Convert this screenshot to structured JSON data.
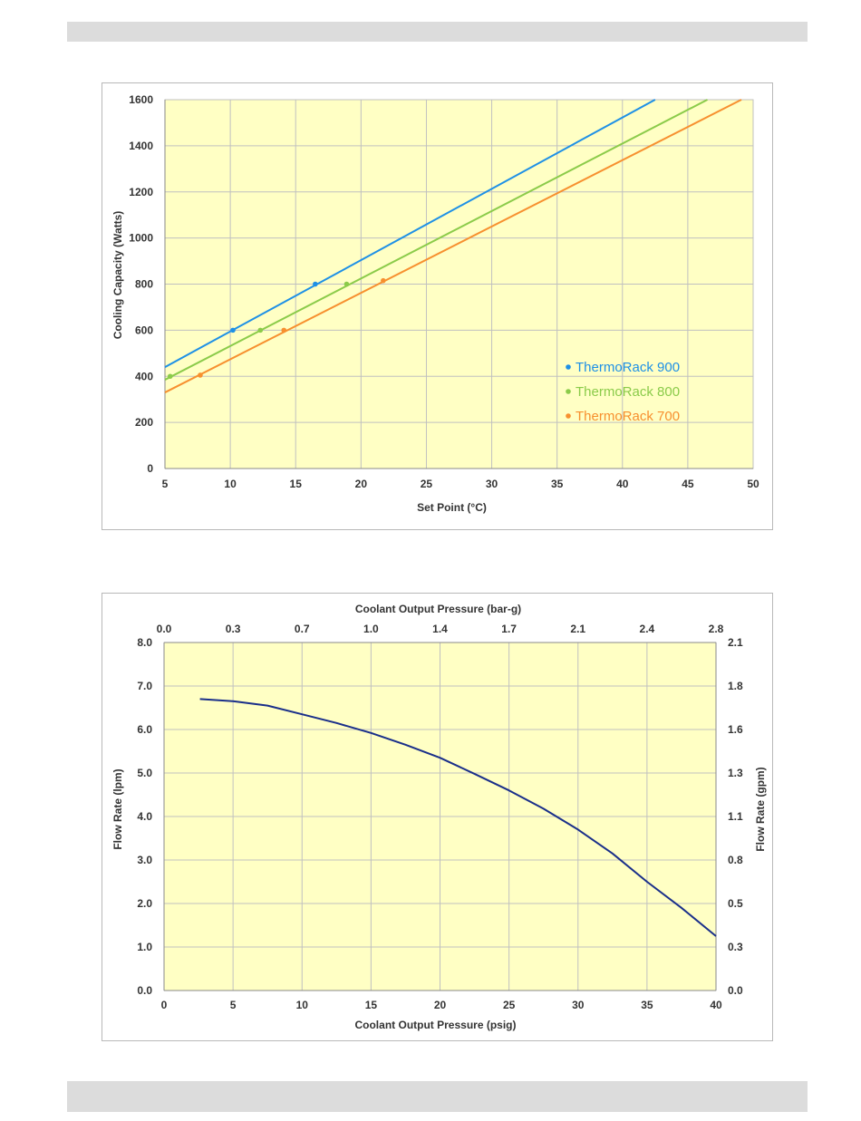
{
  "chart_data": [
    {
      "type": "line",
      "title": "",
      "xlabel": "Set Point (°C)",
      "ylabel": "Cooling Capacity (Watts)",
      "xlim": [
        5,
        50
      ],
      "ylim": [
        0,
        1600
      ],
      "xticks": [
        5,
        10,
        15,
        20,
        25,
        30,
        35,
        40,
        45,
        50
      ],
      "yticks": [
        0,
        200,
        400,
        600,
        800,
        1000,
        1200,
        1400,
        1600
      ],
      "xtick_labels": [
        "5",
        "10",
        "15",
        "20",
        "25",
        "30",
        "35",
        "40",
        "45",
        "50"
      ],
      "ytick_labels": [
        "0",
        "200",
        "400",
        "600",
        "800",
        "1000",
        "1200",
        "1400",
        "1600"
      ],
      "grid": true,
      "legend_position": "bottom-right",
      "series": [
        {
          "name": "ThermoRack 900",
          "color": "#1e90e6",
          "line": [
            [
              5,
              440
            ],
            [
              42.5,
              1600
            ]
          ],
          "points": [
            [
              10.2,
              600
            ],
            [
              16.5,
              800
            ]
          ]
        },
        {
          "name": "ThermoRack 800",
          "color": "#8bcb4a",
          "line": [
            [
              5,
              385
            ],
            [
              46.5,
              1600
            ]
          ],
          "points": [
            [
              5.4,
              400
            ],
            [
              12.3,
              600
            ],
            [
              18.9,
              800
            ]
          ]
        },
        {
          "name": "ThermoRack 700",
          "color": "#f7902f",
          "line": [
            [
              5,
              330
            ],
            [
              49.1,
              1600
            ]
          ],
          "points": [
            [
              7.7,
              405
            ],
            [
              14.1,
              600
            ],
            [
              21.7,
              815
            ]
          ]
        }
      ]
    },
    {
      "type": "line",
      "title": "",
      "xlabel": "Coolant Output  Pressure  (psig)",
      "x2label": "Coolant Output  Pressure  (bar-g)",
      "ylabel": "Flow Rate (lpm)",
      "y2label": "Flow Rate (gpm)",
      "xlim": [
        0,
        40
      ],
      "ylim": [
        0,
        8
      ],
      "xticks": [
        0,
        5,
        10,
        15,
        20,
        25,
        30,
        35,
        40
      ],
      "xtick_labels": [
        "0",
        "5",
        "10",
        "15",
        "20",
        "25",
        "30",
        "35",
        "40"
      ],
      "yticks": [
        0,
        1,
        2,
        3,
        4,
        5,
        6,
        7,
        8
      ],
      "ytick_labels": [
        "0.0",
        "1.0",
        "2.0",
        "3.0",
        "4.0",
        "5.0",
        "6.0",
        "7.0",
        "8.0"
      ],
      "x2tick_labels": [
        "0.0",
        "0.3",
        "0.7",
        "1.0",
        "1.4",
        "1.7",
        "2.1",
        "2.4",
        "2.8"
      ],
      "y2tick_labels": [
        "0.0",
        "0.3",
        "0.5",
        "0.8",
        "1.1",
        "1.3",
        "1.6",
        "1.8",
        "2.1"
      ],
      "grid": true,
      "series": [
        {
          "name": "",
          "color": "#1a2f8a",
          "points": [
            [
              2.6,
              6.7
            ],
            [
              5,
              6.65
            ],
            [
              7.5,
              6.55
            ],
            [
              10,
              6.35
            ],
            [
              12.5,
              6.15
            ],
            [
              15,
              5.92
            ],
            [
              17.5,
              5.65
            ],
            [
              20,
              5.35
            ],
            [
              22.5,
              4.98
            ],
            [
              25,
              4.6
            ],
            [
              27.5,
              4.18
            ],
            [
              30,
              3.7
            ],
            [
              32.5,
              3.15
            ],
            [
              35,
              2.5
            ],
            [
              37.5,
              1.9
            ],
            [
              40,
              1.25
            ]
          ]
        }
      ]
    }
  ]
}
